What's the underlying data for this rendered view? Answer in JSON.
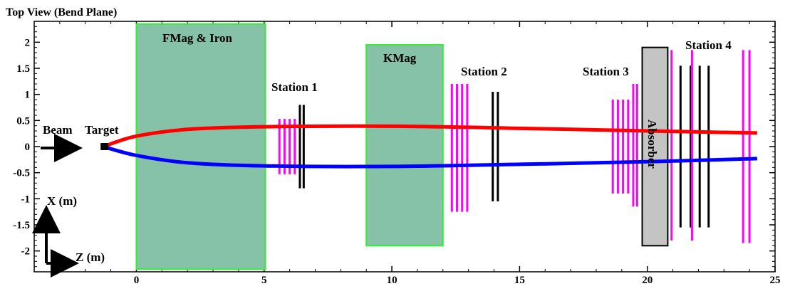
{
  "title": "Top View (Bend Plane)",
  "axes": {
    "x_range": [
      -4,
      25
    ],
    "y_range": [
      -2.4,
      2.4
    ],
    "x_ticks": [
      0,
      5,
      10,
      15,
      20,
      25
    ],
    "y_ticks": [
      2,
      1.5,
      1,
      0.5,
      0,
      -0.5,
      -1,
      -1.5,
      -2
    ],
    "x_tick_labels": [
      "0",
      "5",
      "10",
      "15",
      "20",
      "25"
    ],
    "y_tick_labels": [
      "2",
      "1.5",
      "1",
      "0.5",
      "0",
      "-0.5",
      "-1",
      "-1.5",
      "-2"
    ]
  },
  "labels": {
    "beam": "Beam",
    "target": "Target",
    "fmag": "FMag & Iron",
    "kmag": "KMag",
    "absorber": "Absorber",
    "station1": "Station 1",
    "station2": "Station 2",
    "station3": "Station 3",
    "station4": "Station 4",
    "x_axis": "X (m)",
    "z_axis": "Z (m)"
  },
  "magnets": [
    {
      "name": "fmag",
      "z": [
        0,
        5.05
      ],
      "x": [
        -2.35,
        2.35
      ]
    },
    {
      "name": "kmag",
      "z": [
        9.0,
        12.0
      ],
      "x": [
        -1.9,
        1.95
      ]
    }
  ],
  "absorber": {
    "z": [
      19.8,
      20.8
    ],
    "x": [
      -1.9,
      1.9
    ]
  },
  "target": {
    "z": [
      -1.4,
      -1.1
    ],
    "x": 0
  },
  "detector_planes": [
    {
      "z": 5.6,
      "x": [
        -0.53,
        0.53
      ],
      "color": "#ff00ff"
    },
    {
      "z": 5.8,
      "x": [
        -0.53,
        0.53
      ],
      "color": "#ff00ff"
    },
    {
      "z": 6.0,
      "x": [
        -0.53,
        0.53
      ],
      "color": "#ff00ff"
    },
    {
      "z": 6.2,
      "x": [
        -0.53,
        0.53
      ],
      "color": "#ff00ff"
    },
    {
      "z": 6.4,
      "x": [
        -0.8,
        0.8
      ],
      "color": "#000000"
    },
    {
      "z": 6.55,
      "x": [
        -0.8,
        0.8
      ],
      "color": "#000000"
    },
    {
      "z": 12.35,
      "x": [
        -1.25,
        1.2
      ],
      "color": "#ff00ff"
    },
    {
      "z": 12.55,
      "x": [
        -1.25,
        1.2
      ],
      "color": "#ff00ff"
    },
    {
      "z": 12.75,
      "x": [
        -1.25,
        1.2
      ],
      "color": "#ff00ff"
    },
    {
      "z": 12.95,
      "x": [
        -1.25,
        1.2
      ],
      "color": "#ff00ff"
    },
    {
      "z": 13.95,
      "x": [
        -1.05,
        1.05
      ],
      "color": "#000000"
    },
    {
      "z": 14.15,
      "x": [
        -1.05,
        1.05
      ],
      "color": "#000000"
    },
    {
      "z": 18.65,
      "x": [
        -0.9,
        0.9
      ],
      "color": "#ff00ff"
    },
    {
      "z": 18.85,
      "x": [
        -0.9,
        0.9
      ],
      "color": "#ff00ff"
    },
    {
      "z": 19.05,
      "x": [
        -0.9,
        0.9
      ],
      "color": "#ff00ff"
    },
    {
      "z": 19.25,
      "x": [
        -0.9,
        0.9
      ],
      "color": "#ff00ff"
    },
    {
      "z": 19.45,
      "x": [
        -1.15,
        1.2
      ],
      "color": "#ff00ff"
    },
    {
      "z": 19.6,
      "x": [
        -1.15,
        1.2
      ],
      "color": "#ff00ff"
    },
    {
      "z": 20.95,
      "x": [
        -1.8,
        1.85
      ],
      "color": "#ff00ff"
    },
    {
      "z": 21.3,
      "x": [
        -1.55,
        1.55
      ],
      "color": "#000000"
    },
    {
      "z": 21.7,
      "x": [
        -1.55,
        1.55
      ],
      "color": "#000000"
    },
    {
      "z": 21.7,
      "x": [
        -1.55,
        1.55
      ],
      "color": "#000000"
    },
    {
      "z": 21.75,
      "x": [
        -1.8,
        1.85
      ],
      "color": "#ff00ff"
    },
    {
      "z": 22.05,
      "x": [
        -1.55,
        1.55
      ],
      "color": "#000000"
    },
    {
      "z": 22.4,
      "x": [
        -1.55,
        1.55
      ],
      "color": "#000000"
    },
    {
      "z": 23.75,
      "x": [
        -1.85,
        1.85
      ],
      "color": "#ff00ff"
    },
    {
      "z": 24.0,
      "x": [
        -1.85,
        1.85
      ],
      "color": "#ff00ff"
    }
  ],
  "tracks": [
    {
      "name": "positive",
      "color": "#ff0000",
      "points": [
        [
          -1.3,
          0
        ],
        [
          0,
          0.2
        ],
        [
          2,
          0.33
        ],
        [
          5,
          0.38
        ],
        [
          10,
          0.39
        ],
        [
          15,
          0.35
        ],
        [
          20,
          0.3
        ],
        [
          24.3,
          0.26
        ]
      ]
    },
    {
      "name": "negative",
      "color": "#0000ff",
      "points": [
        [
          -1.3,
          0
        ],
        [
          0,
          -0.17
        ],
        [
          2,
          -0.31
        ],
        [
          5,
          -0.37
        ],
        [
          10,
          -0.38
        ],
        [
          15,
          -0.34
        ],
        [
          20,
          -0.29
        ],
        [
          24.3,
          -0.23
        ]
      ]
    }
  ],
  "colors": {
    "magnet_fill": "#86c2a8",
    "magnet_stroke": "#33ee33",
    "absorber_fill": "#c4c4c4"
  }
}
